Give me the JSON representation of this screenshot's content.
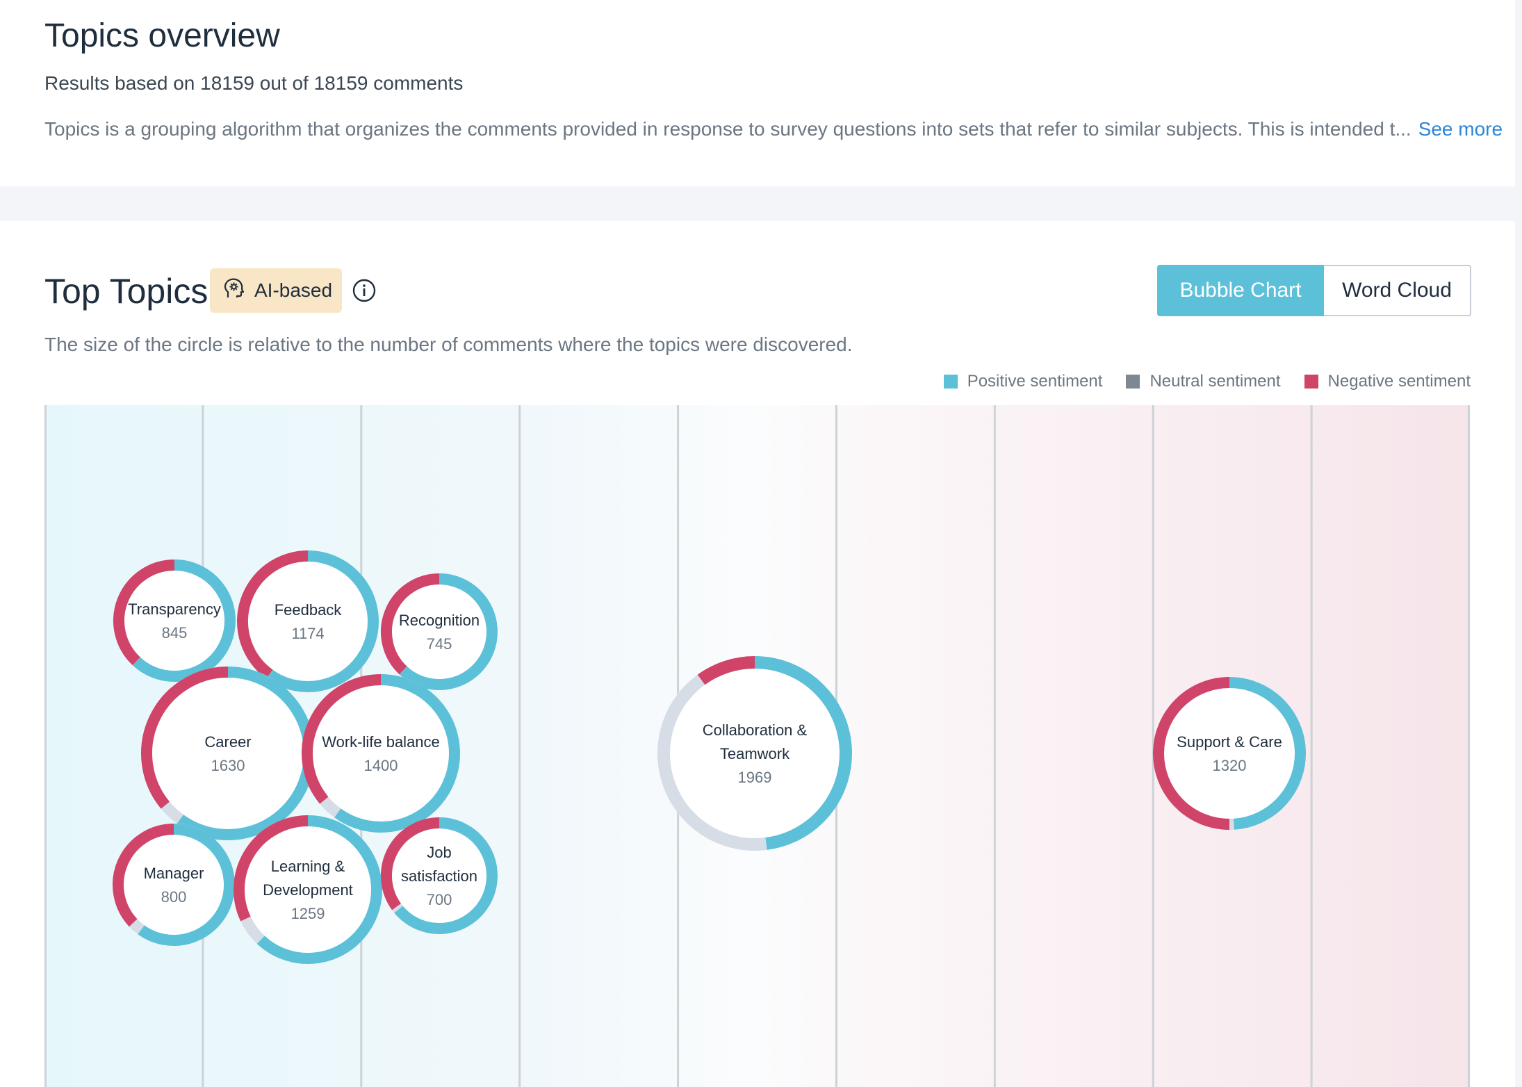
{
  "overview": {
    "title": "Topics overview",
    "results_text": "Results based on 18159 out of 18159 comments",
    "description": "Topics is a grouping algorithm that organizes the comments provided in response to survey questions into sets that refer to similar subjects. This is intended t...",
    "see_more": "See more"
  },
  "top_topics": {
    "title": "Top Topics",
    "badge_label": "AI-based",
    "badge_icon": "brain-gear-icon",
    "info_icon": "info-icon",
    "hint": "The size of the circle is relative to the number of comments where the topics were discovered.",
    "toggle": {
      "active": "Bubble Chart",
      "inactive": "Word Cloud"
    }
  },
  "legend": [
    {
      "label": "Positive sentiment",
      "color": "#5bc0d8"
    },
    {
      "label": "Neutral sentiment",
      "color": "#7d8893"
    },
    {
      "label": "Negative sentiment",
      "color": "#cf4468"
    }
  ],
  "colors": {
    "positive": "#5bc0d8",
    "neutral_ring": "#d6dde6",
    "negative": "#cf4468",
    "accent": "#5bc0d8",
    "link": "#2d86d9"
  },
  "chart_data": {
    "type": "bubble",
    "columns": 9,
    "topics": [
      {
        "name": "Transparency",
        "label_lines": [
          "Transparency"
        ],
        "count": 845,
        "pos": 0.62,
        "neu": 0.0,
        "neg": 0.38
      },
      {
        "name": "Feedback",
        "label_lines": [
          "Feedback"
        ],
        "count": 1174,
        "pos": 0.6,
        "neu": 0.0,
        "neg": 0.4
      },
      {
        "name": "Recognition",
        "label_lines": [
          "Recognition"
        ],
        "count": 745,
        "pos": 0.62,
        "neu": 0.0,
        "neg": 0.38
      },
      {
        "name": "Career",
        "label_lines": [
          "Career"
        ],
        "count": 1630,
        "pos": 0.6,
        "neu": 0.04,
        "neg": 0.36
      },
      {
        "name": "Work-life balance",
        "label_lines": [
          "Work-life balance"
        ],
        "count": 1400,
        "pos": 0.6,
        "neu": 0.04,
        "neg": 0.36
      },
      {
        "name": "Collaboration & Teamwork",
        "label_lines": [
          "Collaboration &",
          "Teamwork"
        ],
        "count": 1969,
        "pos": 0.48,
        "neu": 0.42,
        "neg": 0.1
      },
      {
        "name": "Support & Care",
        "label_lines": [
          "Support & Care"
        ],
        "count": 1320,
        "pos": 0.49,
        "neu": 0.01,
        "neg": 0.5
      },
      {
        "name": "Manager",
        "label_lines": [
          "Manager"
        ],
        "count": 800,
        "pos": 0.6,
        "neu": 0.03,
        "neg": 0.37
      },
      {
        "name": "Learning & Development",
        "label_lines": [
          "Learning &",
          "Development"
        ],
        "count": 1259,
        "pos": 0.62,
        "neu": 0.06,
        "neg": 0.32
      },
      {
        "name": "Job satisfaction",
        "label_lines": [
          "Job",
          "satisfaction"
        ],
        "count": 700,
        "pos": 0.64,
        "neu": 0.01,
        "neg": 0.35
      }
    ]
  }
}
